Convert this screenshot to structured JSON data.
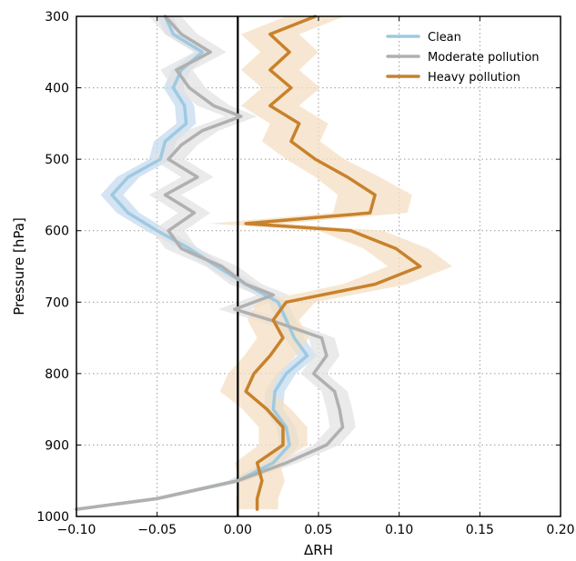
{
  "chart_data": {
    "type": "line",
    "orientation": "vertical-profile",
    "xlabel": "ΔRH",
    "ylabel": "Pressure [hPa]",
    "xlim": [
      -0.1,
      0.2
    ],
    "ylim": [
      1000,
      300
    ],
    "y_inverted": true,
    "xticks": [
      -0.1,
      -0.05,
      0.0,
      0.05,
      0.1,
      0.15,
      0.2
    ],
    "xtick_labels": [
      "−0.10",
      "−0.05",
      "0.00",
      "0.05",
      "0.10",
      "0.15",
      "0.20"
    ],
    "yticks": [
      300,
      400,
      500,
      600,
      700,
      800,
      900,
      1000
    ],
    "ytick_labels": [
      "300",
      "400",
      "500",
      "600",
      "700",
      "800",
      "900",
      "1000"
    ],
    "grid": true,
    "legend_position": "top-right",
    "zero_line": 0.0,
    "series": [
      {
        "name": "Clean",
        "color": "#9ecae1",
        "band_color": "#c6dbef",
        "pressure": [
          300,
          325,
          350,
          375,
          400,
          425,
          450,
          475,
          500,
          525,
          550,
          575,
          600,
          625,
          650,
          675,
          700,
          725,
          750,
          775,
          800,
          825,
          850,
          875,
          900,
          925,
          950,
          975,
          990
        ],
        "values": [
          -0.045,
          -0.04,
          -0.022,
          -0.035,
          -0.04,
          -0.033,
          -0.032,
          -0.045,
          -0.048,
          -0.068,
          -0.078,
          -0.068,
          -0.05,
          -0.03,
          -0.013,
          0.005,
          0.025,
          0.03,
          0.035,
          0.043,
          0.03,
          0.023,
          0.022,
          0.03,
          0.032,
          0.022,
          0.0,
          -0.05,
          -0.1
        ],
        "band_halfwidth": [
          0.005,
          0.005,
          0.005,
          0.006,
          0.006,
          0.006,
          0.006,
          0.007,
          0.007,
          0.007,
          0.007,
          0.007,
          0.007,
          0.006,
          0.006,
          0.006,
          0.006,
          0.006,
          0.006,
          0.006,
          0.006,
          0.006,
          0.006,
          0.006,
          0.006,
          0.006,
          0.006,
          0.005,
          0.004
        ]
      },
      {
        "name": "Moderate pollution",
        "color": "#b0b0b0",
        "band_color": "#e3e3e3",
        "pressure": [
          300,
          325,
          350,
          375,
          400,
          425,
          440,
          460,
          480,
          500,
          525,
          550,
          575,
          600,
          625,
          650,
          675,
          690,
          710,
          725,
          750,
          775,
          800,
          825,
          850,
          875,
          900,
          925,
          950,
          975,
          990
        ],
        "values": [
          -0.045,
          -0.035,
          -0.017,
          -0.038,
          -0.03,
          -0.015,
          0.002,
          -0.022,
          -0.035,
          -0.043,
          -0.025,
          -0.045,
          -0.027,
          -0.043,
          -0.035,
          -0.01,
          0.005,
          0.022,
          -0.002,
          0.02,
          0.052,
          0.055,
          0.047,
          0.06,
          0.063,
          0.065,
          0.055,
          0.03,
          0.0,
          -0.05,
          -0.1
        ],
        "band_halfwidth": [
          0.01,
          0.01,
          0.01,
          0.01,
          0.01,
          0.01,
          0.01,
          0.01,
          0.01,
          0.01,
          0.01,
          0.01,
          0.01,
          0.01,
          0.01,
          0.01,
          0.01,
          0.01,
          0.01,
          0.01,
          0.008,
          0.008,
          0.008,
          0.008,
          0.008,
          0.008,
          0.008,
          0.007,
          0.006,
          0.005,
          0.004
        ]
      },
      {
        "name": "Heavy pollution",
        "color": "#c8822c",
        "band_color": "#f4dfc3",
        "pressure": [
          300,
          325,
          350,
          375,
          400,
          425,
          450,
          475,
          500,
          525,
          550,
          575,
          590,
          600,
          625,
          650,
          675,
          700,
          725,
          750,
          775,
          800,
          825,
          850,
          875,
          900,
          925,
          950,
          975,
          990
        ],
        "values": [
          0.048,
          0.02,
          0.032,
          0.02,
          0.033,
          0.02,
          0.038,
          0.033,
          0.048,
          0.068,
          0.085,
          0.082,
          0.005,
          0.07,
          0.098,
          0.113,
          0.085,
          0.03,
          0.022,
          0.028,
          0.02,
          0.01,
          0.005,
          0.018,
          0.028,
          0.028,
          0.012,
          0.015,
          0.012,
          0.012
        ],
        "band_halfwidth": [
          0.018,
          0.018,
          0.018,
          0.018,
          0.018,
          0.018,
          0.018,
          0.018,
          0.018,
          0.02,
          0.023,
          0.023,
          0.023,
          0.02,
          0.02,
          0.02,
          0.02,
          0.018,
          0.016,
          0.016,
          0.016,
          0.016,
          0.016,
          0.015,
          0.015,
          0.015,
          0.014,
          0.014,
          0.013,
          0.013
        ]
      }
    ]
  }
}
